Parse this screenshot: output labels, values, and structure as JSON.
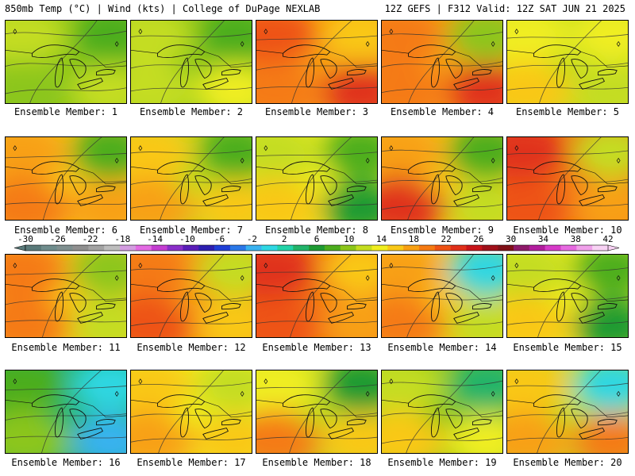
{
  "header": {
    "left": "850mb Temp (°C) | Wind (kts) | College of DuPage NEXLAB",
    "right": "12Z GEFS | F312 Valid: 12Z SAT JUN 21 2025"
  },
  "legend": {
    "ticks": [
      "-30",
      "-26",
      "-22",
      "-18",
      "-14",
      "-10",
      "-6",
      "-2",
      "2",
      "6",
      "10",
      "14",
      "18",
      "22",
      "26",
      "30",
      "34",
      "38",
      "42"
    ],
    "colors": [
      "#5a7a7a",
      "#6f8c8c",
      "#7f8f8f",
      "#8f8f8f",
      "#a3a3a3",
      "#bdbdbd",
      "#d39ce0",
      "#e36be3",
      "#c43ed1",
      "#8a2fc9",
      "#5a1db8",
      "#2d1fb0",
      "#1f3fd6",
      "#2b78e8",
      "#39b2f0",
      "#2fd7e3",
      "#22d3a8",
      "#22b46a",
      "#1e9a33",
      "#4cad1e",
      "#8cc61a",
      "#c4dd20",
      "#f0ee20",
      "#f9c818",
      "#f8a012",
      "#f57a12",
      "#ee5214",
      "#e0301a",
      "#c8141a",
      "#a0101a",
      "#801018",
      "#8e1a6a",
      "#b21e9e",
      "#d63ac8",
      "#e66ae0",
      "#f0a0ea",
      "#f8d2f4"
    ]
  },
  "members": [
    {
      "label": "Ensemble Member: 1",
      "colors": [
        "#c4dd20",
        "#8cc61a",
        "#4cad1e",
        "#8cc61a",
        "#c4dd20"
      ]
    },
    {
      "label": "Ensemble Member: 2",
      "colors": [
        "#c4dd20",
        "#8cc61a",
        "#4cad1e",
        "#c4dd20",
        "#f0ee20"
      ]
    },
    {
      "label": "Ensemble Member: 3",
      "colors": [
        "#ee5214",
        "#f8a012",
        "#f9c818",
        "#f57a12",
        "#e0301a"
      ]
    },
    {
      "label": "Ensemble Member: 4",
      "colors": [
        "#f57a12",
        "#f8a012",
        "#8cc61a",
        "#f57a12",
        "#e0301a"
      ]
    },
    {
      "label": "Ensemble Member: 5",
      "colors": [
        "#f0ee20",
        "#c4dd20",
        "#f0ee20",
        "#f9c818",
        "#c4dd20"
      ]
    },
    {
      "label": "Ensemble Member: 6",
      "colors": [
        "#f8a012",
        "#f9c818",
        "#4cad1e",
        "#f57a12",
        "#f8a012"
      ]
    },
    {
      "label": "Ensemble Member: 7",
      "colors": [
        "#f9c818",
        "#c4dd20",
        "#4cad1e",
        "#f8a012",
        "#f9c818"
      ]
    },
    {
      "label": "Ensemble Member: 8",
      "colors": [
        "#c4dd20",
        "#f0ee20",
        "#4cad1e",
        "#f9c818",
        "#1e9a33"
      ]
    },
    {
      "label": "Ensemble Member: 9",
      "colors": [
        "#f8a012",
        "#f9c818",
        "#4cad1e",
        "#e0301a",
        "#c4dd20"
      ]
    },
    {
      "label": "Ensemble Member: 10",
      "colors": [
        "#e0301a",
        "#f57a12",
        "#c4dd20",
        "#ee5214",
        "#f8a012"
      ]
    },
    {
      "label": "Ensemble Member: 11",
      "colors": [
        "#f57a12",
        "#f9c818",
        "#8cc61a",
        "#f57a12",
        "#c4dd20"
      ]
    },
    {
      "label": "Ensemble Member: 12",
      "colors": [
        "#f57a12",
        "#f8a012",
        "#c4dd20",
        "#ee5214",
        "#f9c818"
      ]
    },
    {
      "label": "Ensemble Member: 13",
      "colors": [
        "#e0301a",
        "#f57a12",
        "#f9c818",
        "#ee5214",
        "#f8a012"
      ]
    },
    {
      "label": "Ensemble Member: 14",
      "colors": [
        "#f8a012",
        "#f9c818",
        "#2fd7e3",
        "#f57a12",
        "#c4dd20"
      ]
    },
    {
      "label": "Ensemble Member: 15",
      "colors": [
        "#c4dd20",
        "#f0ee20",
        "#4cad1e",
        "#f9c818",
        "#1e9a33"
      ]
    },
    {
      "label": "Ensemble Member: 16",
      "colors": [
        "#4cad1e",
        "#22b46a",
        "#2fd7e3",
        "#8cc61a",
        "#39b2f0"
      ]
    },
    {
      "label": "Ensemble Member: 17",
      "colors": [
        "#f9c818",
        "#f0ee20",
        "#c4dd20",
        "#f8a012",
        "#f9c818"
      ]
    },
    {
      "label": "Ensemble Member: 18",
      "colors": [
        "#f0ee20",
        "#c4dd20",
        "#1e9a33",
        "#f57a12",
        "#f9c818"
      ]
    },
    {
      "label": "Ensemble Member: 19",
      "colors": [
        "#c4dd20",
        "#8cc61a",
        "#22b46a",
        "#f9c818",
        "#f0ee20"
      ]
    },
    {
      "label": "Ensemble Member: 20",
      "colors": [
        "#f9c818",
        "#c4dd20",
        "#2fd7e3",
        "#f8a012",
        "#f57a12"
      ]
    }
  ]
}
